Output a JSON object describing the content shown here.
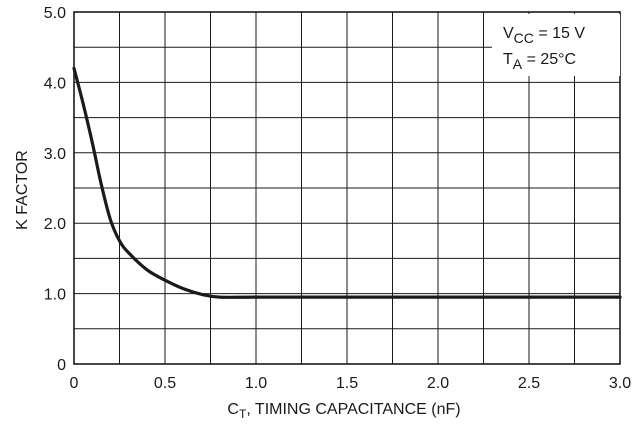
{
  "chart_data": {
    "type": "line",
    "title": "",
    "xlabel": {
      "main": "C",
      "sub": "T",
      "rest": ", TIMING CAPACITANCE (nF)"
    },
    "ylabel": "K FACTOR",
    "xlim": [
      0,
      3.0
    ],
    "ylim": [
      0,
      5.0
    ],
    "x_ticks": [
      0,
      0.5,
      1.0,
      1.5,
      2.0,
      2.5,
      3.0
    ],
    "x_tick_labels": [
      "0",
      "0.5",
      "1.0",
      "1.5",
      "2.0",
      "2.5",
      "3.0"
    ],
    "y_ticks": [
      0,
      1.0,
      2.0,
      3.0,
      4.0,
      5.0
    ],
    "y_tick_labels": [
      "0",
      "1.0",
      "2.0",
      "3.0",
      "4.0",
      "5.0"
    ],
    "grid": true,
    "grid_x_step": 0.25,
    "grid_y_step": 0.5,
    "series": [
      {
        "color": "#1a1a1a",
        "x": [
          0.0,
          0.05,
          0.1,
          0.15,
          0.2,
          0.25,
          0.3,
          0.4,
          0.5,
          0.6,
          0.7,
          0.8,
          1.0,
          1.5,
          2.0,
          2.5,
          3.0
        ],
        "y": [
          4.2,
          3.7,
          3.15,
          2.55,
          2.05,
          1.75,
          1.58,
          1.34,
          1.19,
          1.07,
          0.99,
          0.95,
          0.95,
          0.95,
          0.95,
          0.95,
          0.95
        ]
      }
    ],
    "annotations": [
      {
        "main": "V",
        "sub": "CC",
        "rest": " = 15 V"
      },
      {
        "main": "T",
        "sub": "A",
        "rest": " = 25°C"
      }
    ]
  }
}
